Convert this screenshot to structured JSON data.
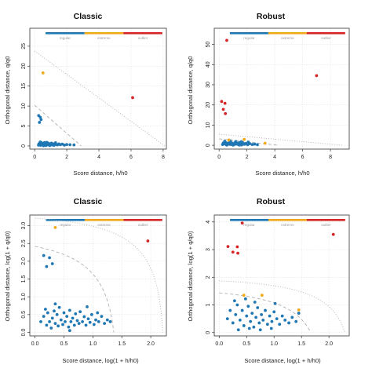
{
  "colors": {
    "regular": "#1f77b4",
    "extreme": "#f0a91a",
    "outlier": "#d62728",
    "grid": "#e2e2e2",
    "limit": "#b0b0b0"
  },
  "chart_data": [
    {
      "type": "scatter",
      "title": "Classic",
      "xlabel": "Score distance, h/h0",
      "ylabel": "Orthogonal distance, q/q0",
      "xlim": [
        -0.3,
        8.2
      ],
      "ylim": [
        -0.8,
        29.5
      ],
      "xticks": [
        0,
        2,
        4,
        6,
        8
      ],
      "xtick_labels": [
        "0",
        "2",
        "4",
        "6",
        "8"
      ],
      "yticks": [
        0,
        5,
        10,
        15,
        20,
        25
      ],
      "ytick_labels": [
        "0",
        "5",
        "10",
        "15",
        "20",
        "25"
      ],
      "grid": true,
      "legend": {
        "placement": "top",
        "labels": [
          "regular",
          "extreme",
          "outlier"
        ]
      },
      "boundaries": {
        "extreme_line": [
          [
            0,
            10.2
          ],
          [
            2.9,
            0
          ]
        ],
        "outlier_line": [
          [
            0,
            23.8
          ],
          [
            8.1,
            0
          ]
        ]
      },
      "series": [
        {
          "name": "regular",
          "points": [
            [
              0.24,
              0.2
            ],
            [
              0.27,
              0.55
            ],
            [
              0.3,
              0.3
            ],
            [
              0.33,
              0.7
            ],
            [
              0.36,
              0.15
            ],
            [
              0.4,
              0.45
            ],
            [
              0.43,
              0.8
            ],
            [
              0.46,
              0.3
            ],
            [
              0.5,
              0.6
            ],
            [
              0.54,
              0.2
            ],
            [
              0.58,
              0.5
            ],
            [
              0.62,
              0.85
            ],
            [
              0.66,
              0.35
            ],
            [
              0.7,
              0.1
            ],
            [
              0.74,
              0.6
            ],
            [
              0.78,
              0.3
            ],
            [
              0.82,
              0.75
            ],
            [
              0.86,
              0.45
            ],
            [
              0.9,
              0.2
            ],
            [
              0.95,
              0.55
            ],
            [
              1.0,
              0.35
            ],
            [
              1.05,
              0.7
            ],
            [
              1.1,
              0.25
            ],
            [
              1.15,
              0.5
            ],
            [
              1.2,
              0.15
            ],
            [
              1.27,
              0.6
            ],
            [
              1.34,
              0.35
            ],
            [
              1.42,
              0.25
            ],
            [
              1.5,
              0.5
            ],
            [
              1.6,
              0.3
            ],
            [
              1.72,
              0.45
            ],
            [
              1.85,
              0.2
            ],
            [
              2.0,
              0.35
            ],
            [
              2.2,
              0.3
            ],
            [
              2.45,
              0.25
            ],
            [
              0.35,
              1.0
            ],
            [
              0.55,
              0.05
            ],
            [
              0.75,
              0.9
            ],
            [
              0.95,
              0.1
            ],
            [
              1.3,
              0.8
            ],
            [
              0.25,
              7.6
            ],
            [
              0.35,
              7.2
            ],
            [
              0.4,
              6.6
            ],
            [
              0.3,
              5.9
            ]
          ]
        },
        {
          "name": "extreme",
          "points": [
            [
              0.52,
              18.3
            ]
          ]
        },
        {
          "name": "outlier",
          "points": [
            [
              6.1,
              12.1
            ]
          ]
        }
      ]
    },
    {
      "type": "scatter",
      "title": "Robust",
      "xlabel": "Score distance, h/h0",
      "ylabel": "Orthogonal distance, q/q0",
      "xlim": [
        -0.35,
        9.35
      ],
      "ylim": [
        -1.9,
        58.0
      ],
      "xticks": [
        0,
        2,
        4,
        6,
        8
      ],
      "xtick_labels": [
        "0",
        "2",
        "4",
        "6",
        "8"
      ],
      "yticks": [
        0,
        10,
        20,
        30,
        40,
        50
      ],
      "ytick_labels": [
        "0",
        "10",
        "20",
        "30",
        "40",
        "50"
      ],
      "grid": true,
      "legend": {
        "placement": "top",
        "labels": [
          "regular",
          "extreme",
          "outlier"
        ]
      },
      "boundaries": {
        "extreme_line": [
          [
            0,
            3.2
          ],
          [
            4.3,
            0
          ]
        ],
        "outlier_line": [
          [
            0,
            5.5
          ],
          [
            8.9,
            0
          ]
        ]
      },
      "series": [
        {
          "name": "regular",
          "points": [
            [
              0.25,
              0.4
            ],
            [
              0.3,
              1.1
            ],
            [
              0.38,
              0.7
            ],
            [
              0.45,
              1.5
            ],
            [
              0.52,
              0.3
            ],
            [
              0.6,
              1.0
            ],
            [
              0.68,
              0.6
            ],
            [
              0.75,
              1.6
            ],
            [
              0.82,
              0.4
            ],
            [
              0.9,
              1.2
            ],
            [
              0.98,
              0.8
            ],
            [
              1.06,
              0.3
            ],
            [
              1.14,
              1.3
            ],
            [
              1.22,
              0.6
            ],
            [
              1.3,
              1.0
            ],
            [
              1.38,
              0.4
            ],
            [
              1.46,
              1.4
            ],
            [
              1.54,
              0.7
            ],
            [
              1.62,
              0.2
            ],
            [
              1.72,
              1.1
            ],
            [
              1.82,
              0.5
            ],
            [
              1.92,
              0.9
            ],
            [
              2.05,
              0.3
            ],
            [
              2.2,
              0.8
            ],
            [
              2.38,
              0.4
            ],
            [
              2.55,
              0.6
            ],
            [
              2.75,
              0.3
            ],
            [
              0.4,
              2.0
            ],
            [
              0.8,
              2.2
            ],
            [
              1.2,
              1.9
            ],
            [
              1.6,
              1.8
            ],
            [
              2.1,
              1.6
            ],
            [
              0.55,
              0.1
            ],
            [
              1.0,
              0.1
            ],
            [
              1.45,
              0.1
            ]
          ]
        },
        {
          "name": "extreme",
          "points": [
            [
              1.8,
              2.9
            ],
            [
              3.3,
              1.0
            ],
            [
              0.7,
              2.6
            ]
          ]
        },
        {
          "name": "outlier",
          "points": [
            [
              0.55,
              52.0
            ],
            [
              0.18,
              21.7
            ],
            [
              0.42,
              20.8
            ],
            [
              0.3,
              17.8
            ],
            [
              0.45,
              15.7
            ],
            [
              7.0,
              34.5
            ]
          ]
        }
      ]
    },
    {
      "type": "scatter",
      "title": "Classic",
      "xlabel": "Score distance, log(1 + h/h0)",
      "ylabel": "Orthogonal distance, log(1 + q/q0)",
      "xlim": [
        -0.09,
        2.27
      ],
      "ylim": [
        -0.1,
        3.3
      ],
      "xticks": [
        0,
        0.5,
        1,
        1.5,
        2
      ],
      "xtick_labels": [
        "0.0",
        "0.5",
        "1.0",
        "1.5",
        "2.0"
      ],
      "yticks": [
        0,
        0.5,
        1,
        1.5,
        2,
        2.5,
        3
      ],
      "ytick_labels": [
        "0.0",
        "0.5",
        "1.0",
        "1.5",
        "2.0",
        "2.5",
        "3.0"
      ],
      "grid": true,
      "legend": {
        "placement": "top",
        "labels": [
          "regular",
          "extreme",
          "outlier"
        ]
      },
      "boundaries": {
        "extreme_curve": {
          "h_limit": 2.9,
          "q_limit": 10.2
        },
        "outlier_curve": {
          "h_limit": 8.1,
          "q_limit": 23.8
        }
      },
      "series": [
        {
          "name": "regular",
          "points": [
            [
              0.1,
              0.3
            ],
            [
              0.15,
              0.45
            ],
            [
              0.2,
              0.2
            ],
            [
              0.22,
              0.55
            ],
            [
              0.25,
              0.3
            ],
            [
              0.28,
              0.12
            ],
            [
              0.3,
              0.4
            ],
            [
              0.33,
              0.6
            ],
            [
              0.35,
              0.25
            ],
            [
              0.38,
              0.5
            ],
            [
              0.4,
              0.18
            ],
            [
              0.42,
              0.7
            ],
            [
              0.45,
              0.35
            ],
            [
              0.48,
              0.22
            ],
            [
              0.5,
              0.55
            ],
            [
              0.52,
              0.3
            ],
            [
              0.55,
              0.45
            ],
            [
              0.58,
              0.15
            ],
            [
              0.6,
              0.62
            ],
            [
              0.62,
              0.3
            ],
            [
              0.65,
              0.4
            ],
            [
              0.68,
              0.2
            ],
            [
              0.7,
              0.52
            ],
            [
              0.73,
              0.33
            ],
            [
              0.76,
              0.25
            ],
            [
              0.78,
              0.58
            ],
            [
              0.82,
              0.3
            ],
            [
              0.85,
              0.44
            ],
            [
              0.88,
              0.2
            ],
            [
              0.92,
              0.38
            ],
            [
              0.95,
              0.28
            ],
            [
              0.98,
              0.5
            ],
            [
              1.02,
              0.22
            ],
            [
              1.05,
              0.35
            ],
            [
              1.1,
              0.3
            ],
            [
              1.15,
              0.45
            ],
            [
              1.2,
              0.25
            ],
            [
              1.25,
              0.35
            ],
            [
              1.3,
              0.3
            ],
            [
              0.35,
              0.8
            ],
            [
              0.6,
              0.05
            ],
            [
              0.9,
              0.72
            ],
            [
              0.18,
              0.65
            ],
            [
              1.08,
              0.55
            ],
            [
              0.15,
              2.16
            ],
            [
              0.25,
              2.1
            ],
            [
              0.3,
              1.93
            ],
            [
              0.2,
              1.85
            ]
          ]
        },
        {
          "name": "extreme",
          "points": [
            [
              0.35,
              2.95
            ]
          ]
        },
        {
          "name": "outlier",
          "points": [
            [
              1.95,
              2.57
            ]
          ]
        }
      ]
    },
    {
      "type": "scatter",
      "title": "Robust",
      "xlabel": "Score distance, log(1 + h/h0)",
      "ylabel": "Orthogonal distance, log(1 + q/q0)",
      "xlim": [
        -0.09,
        2.37
      ],
      "ylim": [
        -0.12,
        4.25
      ],
      "xticks": [
        0,
        0.5,
        1,
        1.5,
        2
      ],
      "xtick_labels": [
        "0.0",
        "0.5",
        "1.0",
        "1.5",
        "2.0"
      ],
      "yticks": [
        0,
        1,
        2,
        3,
        4
      ],
      "ytick_labels": [
        "0",
        "1",
        "2",
        "3",
        "4"
      ],
      "grid": true,
      "legend": {
        "placement": "top",
        "labels": [
          "regular",
          "extreme",
          "outlier"
        ]
      },
      "boundaries": {
        "extreme_curve": {
          "h_limit": 4.3,
          "q_limit": 3.2
        },
        "outlier_curve": {
          "h_limit": 8.9,
          "q_limit": 5.5
        }
      },
      "series": [
        {
          "name": "regular",
          "points": [
            [
              0.15,
              0.5
            ],
            [
              0.2,
              0.8
            ],
            [
              0.25,
              0.35
            ],
            [
              0.3,
              0.65
            ],
            [
              0.33,
              1.0
            ],
            [
              0.38,
              0.45
            ],
            [
              0.42,
              0.8
            ],
            [
              0.45,
              0.25
            ],
            [
              0.5,
              0.6
            ],
            [
              0.53,
              0.95
            ],
            [
              0.57,
              0.4
            ],
            [
              0.6,
              0.7
            ],
            [
              0.63,
              0.2
            ],
            [
              0.67,
              0.55
            ],
            [
              0.7,
              0.9
            ],
            [
              0.73,
              0.35
            ],
            [
              0.77,
              0.65
            ],
            [
              0.8,
              0.45
            ],
            [
              0.84,
              0.8
            ],
            [
              0.88,
              0.3
            ],
            [
              0.92,
              0.6
            ],
            [
              0.96,
              0.4
            ],
            [
              1.0,
              0.75
            ],
            [
              1.05,
              0.5
            ],
            [
              1.1,
              0.3
            ],
            [
              1.15,
              0.6
            ],
            [
              1.2,
              0.45
            ],
            [
              1.27,
              0.35
            ],
            [
              1.33,
              0.55
            ],
            [
              1.4,
              0.4
            ],
            [
              0.35,
              0.1
            ],
            [
              0.55,
              0.15
            ],
            [
              0.75,
              0.1
            ],
            [
              0.95,
              0.15
            ],
            [
              0.28,
              1.15
            ],
            [
              0.65,
              1.1
            ],
            [
              1.02,
              1.05
            ],
            [
              0.48,
              1.22
            ],
            [
              1.45,
              0.7
            ]
          ]
        },
        {
          "name": "extreme",
          "points": [
            [
              0.45,
              1.35
            ],
            [
              0.78,
              1.35
            ],
            [
              1.45,
              0.82
            ]
          ]
        },
        {
          "name": "outlier",
          "points": [
            [
              0.42,
              3.96
            ],
            [
              0.16,
              3.11
            ],
            [
              0.25,
              2.91
            ],
            [
              0.34,
              2.87
            ],
            [
              0.33,
              3.1
            ],
            [
              2.08,
              3.55
            ]
          ]
        }
      ]
    }
  ]
}
